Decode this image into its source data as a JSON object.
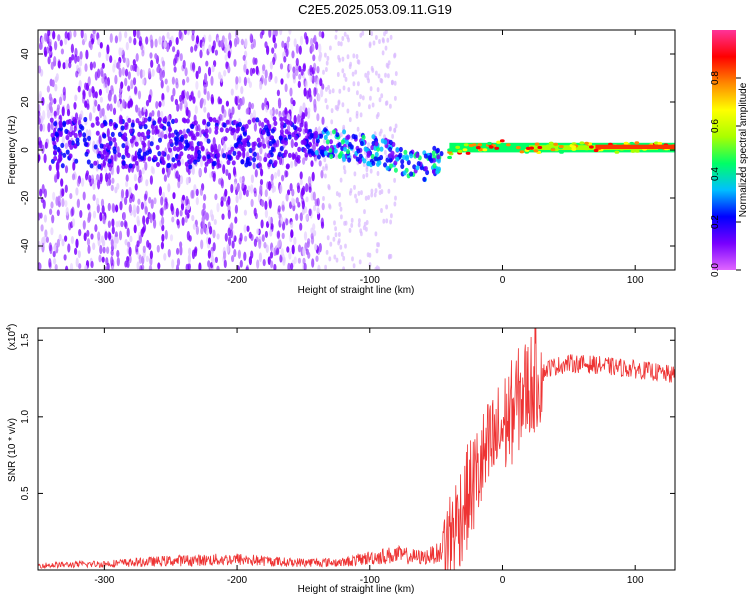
{
  "title": "C2E5.2025.053.09.11.G19",
  "chart_data": [
    {
      "type": "heatmap",
      "title": "C2E5.2025.053.09.11.G19",
      "xlabel": "Height of straight line (km)",
      "ylabel": "Frequency (Hz)",
      "xlim": [
        -350,
        130
      ],
      "ylim": [
        -50,
        50
      ],
      "xticks": [
        -300,
        -200,
        -100,
        0,
        100
      ],
      "yticks": [
        -40,
        -20,
        0,
        20,
        40
      ],
      "colorbar": {
        "label": "Normalized spectral amplitude",
        "range": [
          0,
          1
        ],
        "ticks": [
          0.0,
          0.2,
          0.4,
          0.6,
          0.8
        ],
        "colors": [
          "#e066ff",
          "#7700ff",
          "#0000ff",
          "#00bfff",
          "#00ff66",
          "#aaff00",
          "#ffff00",
          "#ff8800",
          "#ff0000",
          "#ff3399"
        ]
      },
      "ridge": {
        "x": [
          -150,
          -120,
          -100,
          -80,
          -70,
          -60,
          -50,
          -40,
          -30,
          -20,
          -10,
          0,
          20,
          50,
          80,
          100,
          130
        ],
        "freq": [
          3,
          2,
          0,
          -3,
          -6,
          -7,
          -5,
          -2,
          0,
          1,
          1,
          2,
          1,
          1,
          1,
          1,
          1
        ]
      }
    },
    {
      "type": "line",
      "xlabel": "Height of straight line (km)",
      "ylabel": "SNR (10 * v/v)",
      "multiplier": "(x10",
      "multiplier_exp": "4",
      "xlim": [
        -350,
        130
      ],
      "ylim": [
        0,
        1.58
      ],
      "xticks": [
        -300,
        -200,
        -100,
        0,
        100
      ],
      "yticks": [
        0.5,
        1.0,
        1.5
      ],
      "ytick_labels": [
        "0.5",
        "1.0",
        "1.5"
      ],
      "line_color": "#ee3333",
      "series": [
        {
          "name": "SNR",
          "x": [
            -350,
            -300,
            -250,
            -200,
            -160,
            -120,
            -100,
            -80,
            -60,
            -45,
            -35,
            -25,
            -15,
            -5,
            5,
            15,
            25,
            35,
            50,
            70,
            90,
            110,
            130
          ],
          "y": [
            0.03,
            0.04,
            0.06,
            0.07,
            0.05,
            0.05,
            0.08,
            0.1,
            0.08,
            0.12,
            0.3,
            0.5,
            0.7,
            0.85,
            1.0,
            1.15,
            1.25,
            1.32,
            1.35,
            1.34,
            1.32,
            1.3,
            1.27
          ]
        }
      ]
    }
  ]
}
